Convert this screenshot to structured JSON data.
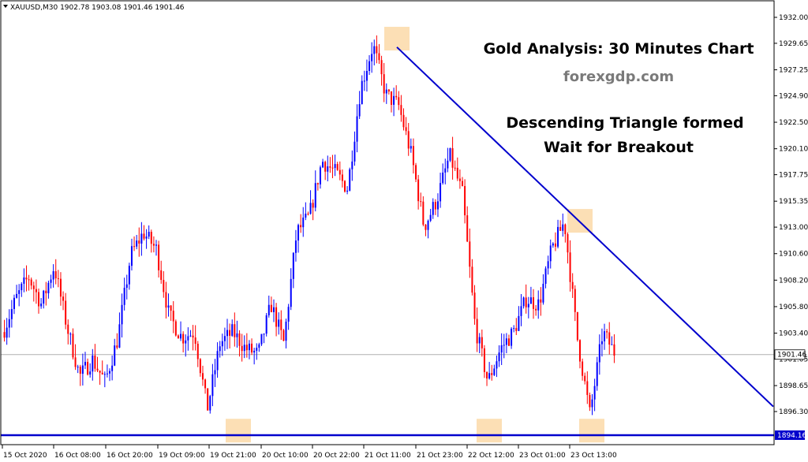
{
  "header": {
    "symbol_line": "XAUUSD,M30  1902.78 1903.08 1901.46 1901.46"
  },
  "annotations": {
    "title": "Gold Analysis: 30 Minutes Chart",
    "subtitle": "forexgdp.com",
    "note_line1": "Descending Triangle formed",
    "note_line2": "Wait for Breakout"
  },
  "price_labels": {
    "current": "1901.46",
    "support": "1894.16"
  },
  "colors": {
    "bull": "#0000ff",
    "bear": "#ff0000",
    "trendline": "#0000cd",
    "support_line": "#0000cd",
    "highlight": "#fcd9a8",
    "current_line": "#b0b0b0"
  },
  "chart_data": {
    "type": "candlestick",
    "title": "Gold Analysis: 30 Minutes Chart",
    "symbol": "XAUUSD,M30",
    "ylim": [
      1894.0,
      1933.0
    ],
    "y_ticks": [
      "1932.00",
      "1929.65",
      "1927.25",
      "1924.90",
      "1922.50",
      "1920.10",
      "1917.75",
      "1915.35",
      "1913.00",
      "1910.60",
      "1908.20",
      "1905.80",
      "1903.40",
      "1901.05",
      "1898.65",
      "1896.30"
    ],
    "x_ticks": [
      "15 Oct 2020",
      "16 Oct 08:00",
      "16 Oct 20:00",
      "19 Oct 09:00",
      "19 Oct 21:00",
      "20 Oct 10:00",
      "20 Oct 22:00",
      "21 Oct 11:00",
      "21 Oct 23:00",
      "22 Oct 12:00",
      "23 Oct 01:00",
      "23 Oct 13:00"
    ],
    "current_price": 1901.46,
    "support_level": 1894.16,
    "price_path": [
      [
        "15 Oct 2020",
        1903.5
      ],
      [
        "15 Oct 2020",
        1906.5
      ],
      [
        "15 Oct 2020",
        1908.5
      ],
      [
        "15 Oct 2020",
        1906.0
      ],
      [
        "16 Oct 08:00",
        1909.5
      ],
      [
        "16 Oct 08:00",
        1904.0
      ],
      [
        "16 Oct 08:00",
        1899.5
      ],
      [
        "16 Oct 08:00",
        1901.0
      ],
      [
        "16 Oct 20:00",
        1899.0
      ],
      [
        "16 Oct 20:00",
        1903.0
      ],
      [
        "16 Oct 20:00",
        1910.5
      ],
      [
        "16 Oct 20:00",
        1912.5
      ],
      [
        "19 Oct 09:00",
        1911.0
      ],
      [
        "19 Oct 09:00",
        1905.0
      ],
      [
        "19 Oct 09:00",
        1903.0
      ],
      [
        "19 Oct 09:00",
        1903.5
      ],
      [
        "19 Oct 21:00",
        1896.5
      ],
      [
        "19 Oct 21:00",
        1902.5
      ],
      [
        "19 Oct 21:00",
        1903.5
      ],
      [
        "19 Oct 21:00",
        1902.0
      ],
      [
        "20 Oct 10:00",
        1901.5
      ],
      [
        "20 Oct 10:00",
        1906.0
      ],
      [
        "20 Oct 10:00",
        1902.5
      ],
      [
        "20 Oct 10:00",
        1912.5
      ],
      [
        "20 Oct 22:00",
        1914.0
      ],
      [
        "20 Oct 22:00",
        1919.0
      ],
      [
        "20 Oct 22:00",
        1918.0
      ],
      [
        "20 Oct 22:00",
        1916.5
      ],
      [
        "21 Oct 11:00",
        1925.5
      ],
      [
        "21 Oct 11:00",
        1929.5
      ],
      [
        "21 Oct 11:00",
        1925.0
      ],
      [
        "21 Oct 11:00",
        1924.0
      ],
      [
        "21 Oct 23:00",
        1919.5
      ],
      [
        "21 Oct 23:00",
        1913.0
      ],
      [
        "21 Oct 23:00",
        1915.5
      ],
      [
        "21 Oct 23:00",
        1919.5
      ],
      [
        "22 Oct 12:00",
        1916.0
      ],
      [
        "22 Oct 12:00",
        1904.0
      ],
      [
        "22 Oct 12:00",
        1899.0
      ],
      [
        "22 Oct 12:00",
        1902.0
      ],
      [
        "23 Oct 01:00",
        1903.5
      ],
      [
        "23 Oct 01:00",
        1906.5
      ],
      [
        "23 Oct 01:00",
        1906.0
      ],
      [
        "23 Oct 01:00",
        1911.0
      ],
      [
        "23 Oct 13:00",
        1913.5
      ],
      [
        "23 Oct 13:00",
        1903.0
      ],
      [
        "23 Oct 13:00",
        1896.0
      ],
      [
        "23 Oct 13:00",
        1903.5
      ],
      [
        "23 Oct 13:00",
        1901.5
      ]
    ],
    "trendline": {
      "from": [
        "21 Oct 11:00",
        1929.3
      ],
      "to": [
        "23 Oct 13:00",
        1913.4
      ],
      "extends": "right"
    },
    "highlighted_swings": [
      {
        "at": "19 Oct 21:00",
        "level": 1894.5
      },
      {
        "at": "21 Oct 11:00",
        "level": 1930.0
      },
      {
        "at": "22 Oct 12:00",
        "level": 1894.5
      },
      {
        "at": "23 Oct 13:00",
        "level": 1913.5
      },
      {
        "at": "23 Oct 13:00",
        "level": 1894.5
      }
    ]
  }
}
